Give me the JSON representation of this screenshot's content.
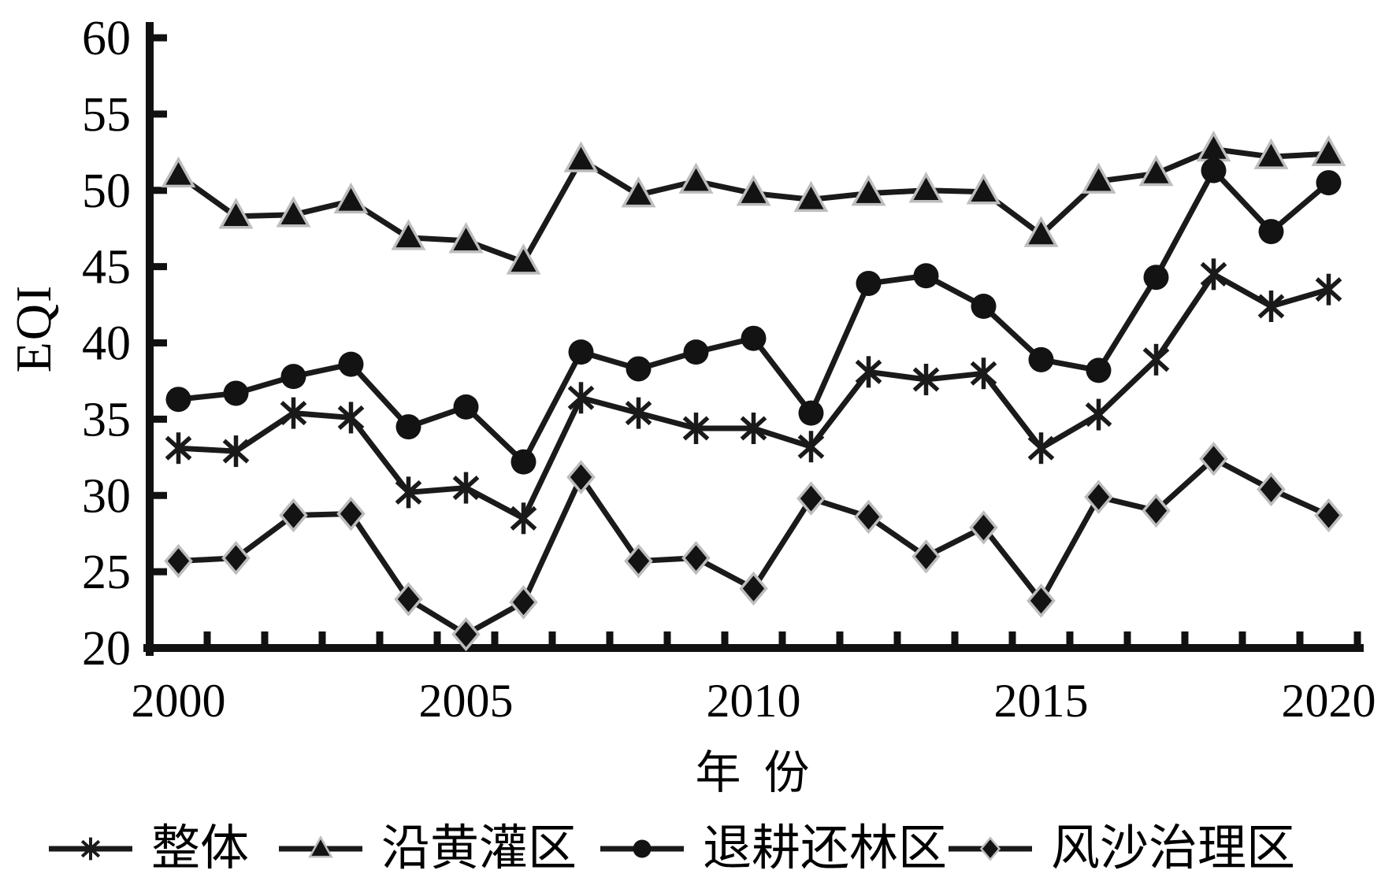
{
  "chart_data": {
    "type": "line",
    "title": "",
    "xlabel": "年  份",
    "ylabel": "EQI",
    "ylim": [
      20,
      60
    ],
    "y_ticks": [
      20,
      25,
      30,
      35,
      40,
      45,
      50,
      55,
      60
    ],
    "x": [
      2000,
      2001,
      2002,
      2003,
      2004,
      2005,
      2006,
      2007,
      2008,
      2009,
      2010,
      2011,
      2012,
      2013,
      2014,
      2015,
      2016,
      2017,
      2018,
      2019,
      2020
    ],
    "x_tick_labels": [
      2000,
      2005,
      2010,
      2015,
      2020
    ],
    "grid": false,
    "legend_position": "bottom",
    "line_color": "#1a1a1a",
    "marker_fill": "#131313",
    "marker_edge": "#bdbdbd",
    "series": [
      {
        "key": "overall",
        "name": "整体",
        "marker": "asterisk",
        "values": [
          33.1,
          32.9,
          35.4,
          35.1,
          30.2,
          30.5,
          28.5,
          36.4,
          35.4,
          34.4,
          34.4,
          33.2,
          38.1,
          37.6,
          38.0,
          33.1,
          35.3,
          38.9,
          44.5,
          42.4,
          43.5
        ]
      },
      {
        "key": "yellow-river-irrigation-area",
        "name": "沿黄灌区",
        "marker": "triangle",
        "values": [
          51.0,
          48.3,
          48.4,
          49.3,
          46.9,
          46.7,
          45.3,
          52.0,
          49.7,
          50.6,
          49.8,
          49.4,
          49.8,
          50.0,
          49.9,
          47.1,
          50.6,
          51.1,
          52.7,
          52.2,
          52.4
        ]
      },
      {
        "key": "farmland-to-forest-area",
        "name": "退耕还林区",
        "marker": "circle",
        "values": [
          36.3,
          36.7,
          37.8,
          38.6,
          34.5,
          35.8,
          32.2,
          39.4,
          38.3,
          39.4,
          40.3,
          35.4,
          43.9,
          44.4,
          42.4,
          38.9,
          38.2,
          44.3,
          51.3,
          47.3,
          50.5
        ]
      },
      {
        "key": "sand-control-area",
        "name": "风沙治理区",
        "marker": "diamond",
        "values": [
          25.7,
          25.9,
          28.7,
          28.8,
          23.2,
          20.9,
          23.0,
          31.2,
          25.7,
          25.9,
          23.9,
          29.8,
          28.6,
          26.0,
          27.9,
          23.1,
          29.9,
          29.0,
          32.4,
          30.4,
          28.7
        ]
      }
    ]
  }
}
